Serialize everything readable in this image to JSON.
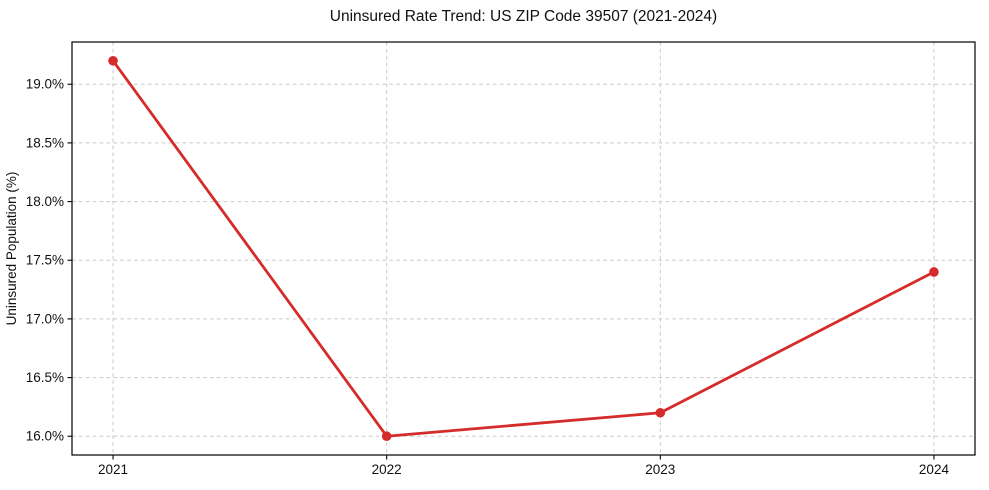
{
  "chart_data": {
    "type": "line",
    "title": "Uninsured Rate Trend: US ZIP Code 39507 (2021-2024)",
    "xlabel": "",
    "ylabel": "Uninsured Population (%)",
    "categories": [
      "2021",
      "2022",
      "2023",
      "2024"
    ],
    "series": [
      {
        "name": "Uninsured rate",
        "values": [
          19.2,
          16.0,
          16.2,
          17.4
        ]
      }
    ],
    "ylim": [
      15.84,
      19.36
    ],
    "yticks": [
      16.0,
      16.5,
      17.0,
      17.5,
      18.0,
      18.5,
      19.0
    ],
    "ytick_labels": [
      "16.0%",
      "16.5%",
      "17.0%",
      "17.5%",
      "18.0%",
      "18.5%",
      "19.0%"
    ],
    "grid": true,
    "grid_style": "dashed",
    "legend": "none",
    "line_color": "#d62b2b",
    "marker": "circle",
    "grid_color": "#c9c9c9",
    "background_color": "#ffffff"
  }
}
